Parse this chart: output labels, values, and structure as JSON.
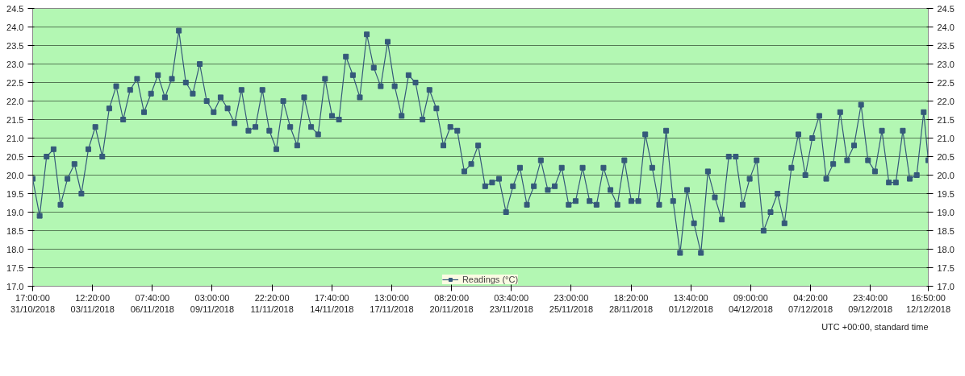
{
  "chart_data": {
    "type": "line",
    "x": [
      "2018-10-31T17:00",
      "2018-11-01T00:50",
      "2018-11-01T08:40",
      "2018-11-01T16:30",
      "2018-11-02T00:20",
      "2018-11-02T08:10",
      "2018-11-02T16:00",
      "2018-11-02T23:50",
      "2018-11-03T07:40",
      "2018-11-03T15:30",
      "2018-11-03T23:20",
      "2018-11-04T07:10",
      "2018-11-04T15:00",
      "2018-11-04T22:50",
      "2018-11-05T06:40",
      "2018-11-05T14:30",
      "2018-11-05T22:20",
      "2018-11-06T06:10",
      "2018-11-06T14:00",
      "2018-11-06T21:50",
      "2018-11-07T05:40",
      "2018-11-07T13:30",
      "2018-11-07T21:20",
      "2018-11-08T05:10",
      "2018-11-08T13:00",
      "2018-11-08T20:50",
      "2018-11-09T04:40",
      "2018-11-09T12:30",
      "2018-11-09T20:20",
      "2018-11-10T04:10",
      "2018-11-10T12:00",
      "2018-11-10T19:50",
      "2018-11-11T03:40",
      "2018-11-11T11:30",
      "2018-11-11T19:20",
      "2018-11-12T03:10",
      "2018-11-12T11:00",
      "2018-11-12T18:50",
      "2018-11-13T02:40",
      "2018-11-13T10:30",
      "2018-11-13T18:20",
      "2018-11-14T02:10",
      "2018-11-14T10:00",
      "2018-11-14T17:50",
      "2018-11-15T01:40",
      "2018-11-15T09:30",
      "2018-11-15T17:20",
      "2018-11-16T01:10",
      "2018-11-16T09:00",
      "2018-11-16T16:50",
      "2018-11-17T00:40",
      "2018-11-17T08:30",
      "2018-11-17T16:20",
      "2018-11-18T00:10",
      "2018-11-18T08:00",
      "2018-11-18T15:50",
      "2018-11-18T23:40",
      "2018-11-19T07:30",
      "2018-11-19T15:20",
      "2018-11-19T23:10",
      "2018-11-20T07:00",
      "2018-11-20T14:50",
      "2018-11-20T22:40",
      "2018-11-21T06:30",
      "2018-11-21T14:20",
      "2018-11-21T22:10",
      "2018-11-22T06:00",
      "2018-11-22T13:50",
      "2018-11-22T21:40",
      "2018-11-23T05:30",
      "2018-11-23T13:20",
      "2018-11-23T21:10",
      "2018-11-24T05:00",
      "2018-11-24T12:50",
      "2018-11-24T20:40",
      "2018-11-25T04:30",
      "2018-11-25T12:20",
      "2018-11-25T20:10",
      "2018-11-26T04:00",
      "2018-11-26T11:50",
      "2018-11-26T19:40",
      "2018-11-27T03:30",
      "2018-11-27T11:20",
      "2018-11-27T19:10",
      "2018-11-28T03:00",
      "2018-11-28T10:50",
      "2018-11-28T18:40",
      "2018-11-29T02:30",
      "2018-11-29T10:20",
      "2018-11-29T18:10",
      "2018-11-30T02:00",
      "2018-11-30T09:50",
      "2018-11-30T17:40",
      "2018-12-01T01:30",
      "2018-12-01T09:20",
      "2018-12-01T17:10",
      "2018-12-02T01:00",
      "2018-12-02T08:50",
      "2018-12-02T16:40",
      "2018-12-03T00:30",
      "2018-12-03T08:20",
      "2018-12-03T16:10",
      "2018-12-04T00:00",
      "2018-12-04T07:50",
      "2018-12-04T15:40",
      "2018-12-04T23:30",
      "2018-12-05T07:20",
      "2018-12-05T15:10",
      "2018-12-05T23:00",
      "2018-12-06T06:50",
      "2018-12-06T14:40",
      "2018-12-06T22:30",
      "2018-12-07T06:20",
      "2018-12-07T14:10",
      "2018-12-07T22:00",
      "2018-12-08T05:50",
      "2018-12-08T13:40",
      "2018-12-08T21:30",
      "2018-12-09T05:20",
      "2018-12-09T13:10",
      "2018-12-09T21:00",
      "2018-12-10T04:50",
      "2018-12-10T12:40",
      "2018-12-10T20:30",
      "2018-12-11T04:20",
      "2018-12-11T12:10",
      "2018-12-11T20:00",
      "2018-12-12T03:50",
      "2018-12-12T11:40",
      "2018-12-12T16:50"
    ],
    "series": [
      {
        "name": "Readings (°C)",
        "color": "#35597a",
        "values": [
          19.9,
          18.9,
          20.5,
          20.7,
          19.2,
          19.9,
          20.3,
          19.5,
          20.7,
          21.3,
          20.5,
          21.8,
          22.4,
          21.5,
          22.3,
          22.6,
          21.7,
          22.2,
          22.7,
          22.1,
          22.6,
          23.9,
          22.5,
          22.2,
          23.0,
          22.0,
          21.7,
          22.1,
          21.8,
          21.4,
          22.3,
          21.2,
          21.3,
          22.3,
          21.2,
          20.7,
          22.0,
          21.3,
          20.8,
          22.1,
          21.3,
          21.1,
          22.6,
          21.6,
          21.5,
          23.2,
          22.7,
          22.1,
          23.8,
          22.9,
          22.4,
          23.6,
          22.4,
          21.6,
          22.7,
          22.5,
          21.5,
          22.3,
          21.8,
          20.8,
          21.3,
          21.2,
          20.1,
          20.3,
          20.8,
          19.7,
          19.8,
          19.9,
          19.0,
          19.7,
          20.2,
          19.2,
          19.7,
          20.4,
          19.6,
          19.7,
          20.2,
          19.2,
          19.3,
          20.2,
          19.3,
          19.2,
          20.2,
          19.6,
          19.2,
          20.4,
          19.3,
          19.3,
          21.1,
          20.2,
          19.2,
          21.2,
          19.3,
          17.9,
          19.6,
          18.7,
          17.9,
          20.1,
          19.4,
          18.8,
          20.5,
          20.5,
          19.2,
          19.9,
          20.4,
          18.5,
          19.0,
          19.5,
          18.7,
          20.2,
          21.1,
          20.0,
          21.0,
          21.6,
          19.9,
          20.3,
          21.7,
          20.4,
          20.8,
          21.9,
          20.4,
          20.1,
          21.2,
          19.8,
          19.8,
          21.2,
          19.9,
          20.0,
          21.7,
          20.4
        ]
      }
    ],
    "xlim": [
      "2018-10-31T17:00",
      "2018-12-12T16:50"
    ],
    "xticks": [
      {
        "value": "2018-10-31T17:00",
        "label": "17:00:00\n31/10/2018"
      },
      {
        "value": "2018-11-03T12:20",
        "label": "12:20:00\n03/11/2018"
      },
      {
        "value": "2018-11-06T07:40",
        "label": "07:40:00\n06/11/2018"
      },
      {
        "value": "2018-11-09T03:00",
        "label": "03:00:00\n09/11/2018"
      },
      {
        "value": "2018-11-11T22:20",
        "label": "22:20:00\n11/11/2018"
      },
      {
        "value": "2018-11-14T17:40",
        "label": "17:40:00\n14/11/2018"
      },
      {
        "value": "2018-11-17T13:00",
        "label": "13:00:00\n17/11/2018"
      },
      {
        "value": "2018-11-20T08:20",
        "label": "08:20:00\n20/11/2018"
      },
      {
        "value": "2018-11-23T03:40",
        "label": "03:40:00\n23/11/2018"
      },
      {
        "value": "2018-11-25T23:00",
        "label": "23:00:00\n25/11/2018"
      },
      {
        "value": "2018-11-28T18:20",
        "label": "18:20:00\n28/11/2018"
      },
      {
        "value": "2018-12-01T13:40",
        "label": "13:40:00\n01/12/2018"
      },
      {
        "value": "2018-12-04T09:00",
        "label": "09:00:00\n04/12/2018"
      },
      {
        "value": "2018-12-07T04:20",
        "label": "04:20:00\n07/12/2018"
      },
      {
        "value": "2018-12-09T23:40",
        "label": "23:40:00\n09/12/2018"
      },
      {
        "value": "2018-12-12T16:50",
        "label": "16:50:00\n12/12/2018"
      }
    ],
    "ylim": [
      17,
      24.5
    ],
    "yticks": [
      {
        "value": 17,
        "label": "17.0"
      },
      17.5,
      {
        "value": 18,
        "label": "18.0"
      },
      18.5,
      {
        "value": 19,
        "label": "19.0"
      },
      19.5,
      {
        "value": 20,
        "label": "20.0"
      },
      20.5,
      {
        "value": 21,
        "label": "21.0"
      },
      21.5,
      {
        "value": 22,
        "label": "22.0"
      },
      22.5,
      {
        "value": 23,
        "label": "23.0"
      },
      23.5,
      {
        "value": 24,
        "label": "24.0"
      },
      24.5
    ],
    "y2lim": [
      17,
      24.5
    ],
    "y2ticks": [
      {
        "value": 17,
        "label": "17.0"
      },
      17.5,
      {
        "value": 18,
        "label": "18.0"
      },
      18.5,
      {
        "value": 19,
        "label": "19.0"
      },
      19.5,
      {
        "value": 20,
        "label": "20.0"
      },
      20.5,
      {
        "value": 21,
        "label": "21.0"
      },
      21.5,
      {
        "value": 22,
        "label": "22.0"
      },
      22.5,
      {
        "value": 23,
        "label": "23.0"
      },
      23.5,
      {
        "value": 24,
        "label": "24.0"
      },
      24.5
    ],
    "grid": "y",
    "legend": "bottom",
    "marker": "square",
    "line_style": "solid",
    "annotations": [
      "UTC +00:00, standard time"
    ]
  }
}
